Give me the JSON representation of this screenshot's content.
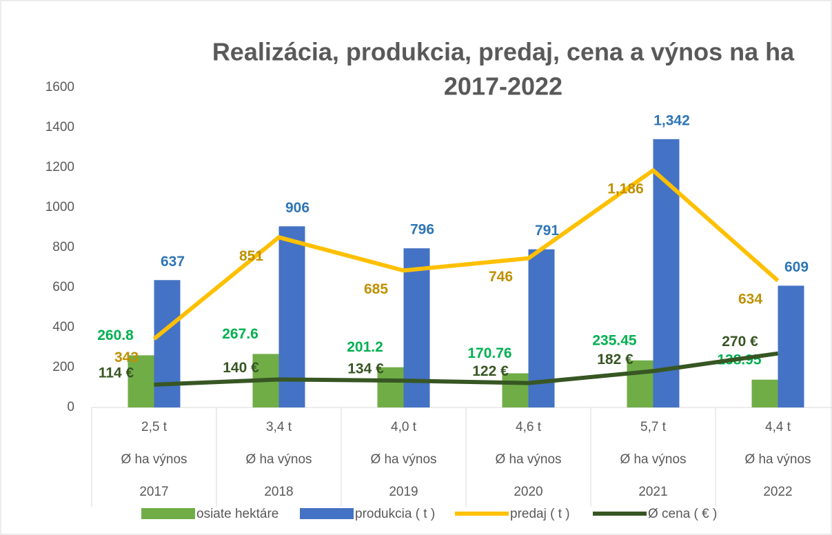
{
  "chart_data": {
    "type": "bar-line",
    "title_lines": [
      "Realizácia, produkcia, predaj, cena a výnos na ha",
      "2017-2022"
    ],
    "categories": [
      [
        "2,5 t",
        "Ø ha výnos",
        "2017"
      ],
      [
        "3,4 t",
        "Ø ha výnos",
        "2018"
      ],
      [
        "4,0 t",
        "Ø ha výnos",
        "2019"
      ],
      [
        "4,6 t",
        "Ø ha výnos",
        "2020"
      ],
      [
        "5,7 t",
        "Ø ha výnos",
        "2021"
      ],
      [
        "4,4 t",
        "Ø ha výnos",
        "2022"
      ]
    ],
    "series": [
      {
        "name": "osiate hektáre",
        "kind": "bar",
        "color": "#70ad47",
        "label_color": "#00b050",
        "values": [
          260.8,
          267.6,
          201.2,
          170.76,
          235.45,
          138.95
        ]
      },
      {
        "name": "produkcia ( t )",
        "kind": "bar",
        "color": "#4472c4",
        "label_color": "#2e75b6",
        "values": [
          637,
          906,
          796,
          791,
          1342,
          609
        ],
        "value_labels": [
          "637",
          "906",
          "796",
          "791",
          "1,342",
          "609"
        ]
      },
      {
        "name": "predaj ( t )",
        "kind": "line",
        "color": "#ffc000",
        "label_color": "#bf9000",
        "values": [
          343,
          851,
          685,
          746,
          1186,
          634
        ],
        "value_labels": [
          "343",
          "851",
          "685",
          "746",
          "1,186",
          "634"
        ]
      },
      {
        "name": "Ø  cena ( € )",
        "kind": "line",
        "color": "#375623",
        "label_color": "#375623",
        "values": [
          114,
          140,
          134,
          122,
          182,
          270
        ],
        "value_labels": [
          "114 €",
          "140 €",
          "134 €",
          "122 €",
          "182 €",
          "270 €"
        ]
      }
    ],
    "ylim": [
      0,
      1600
    ],
    "yticks": [
      0,
      200,
      400,
      600,
      800,
      1000,
      1200,
      1400,
      1600
    ],
    "grid": false
  }
}
